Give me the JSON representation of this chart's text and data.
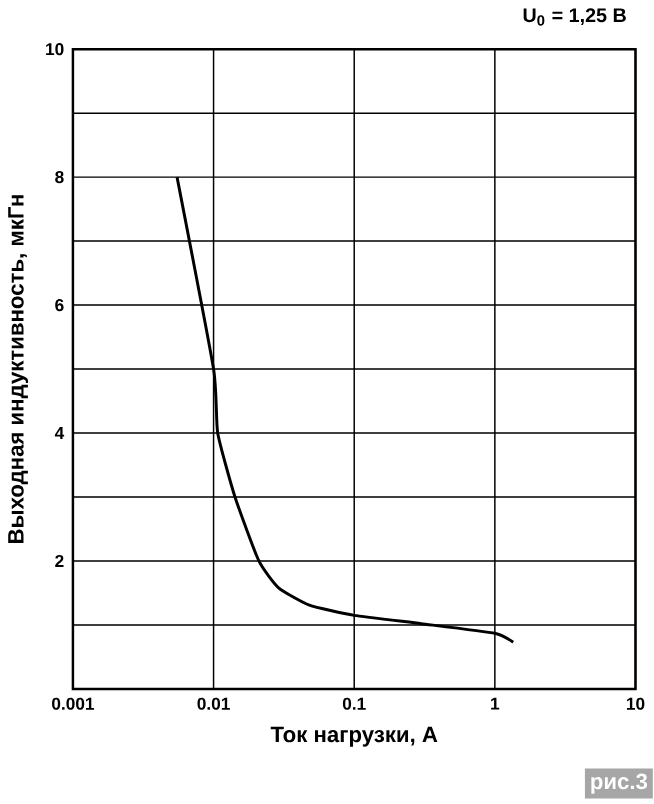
{
  "chart_data": {
    "type": "line",
    "title": "U$_{0}$ = 1,25 В",
    "xlabel": "Ток нагрузки, А",
    "ylabel": "Выходная индуктивность, мкГн",
    "annotations": [
      "рис.3"
    ],
    "log": "x",
    "grid": true,
    "x": [
      0.0055,
      0.01,
      0.0107,
      0.0142,
      0.021,
      0.029,
      0.048,
      0.1,
      0.3,
      1,
      1.35
    ],
    "series": [
      {
        "color": "#000000",
        "values": [
          8,
          5,
          4,
          3,
          2,
          1.58,
          1.31,
          1.15,
          1.02,
          0.87,
          0.73
        ]
      }
    ],
    "xlim": [
      0.001,
      10
    ],
    "ylim": [
      0,
      10
    ],
    "xticks": [
      0.001,
      0.01,
      0.1,
      1,
      10
    ],
    "yticks": [
      {
        "value": 0,
        "label": null
      },
      {
        "value": 1,
        "label": null
      },
      2,
      {
        "value": 3,
        "label": null
      },
      4,
      {
        "value": 5,
        "label": null
      },
      6,
      {
        "value": 7,
        "label": null
      },
      8,
      {
        "value": 9,
        "label": null
      },
      10
    ]
  }
}
